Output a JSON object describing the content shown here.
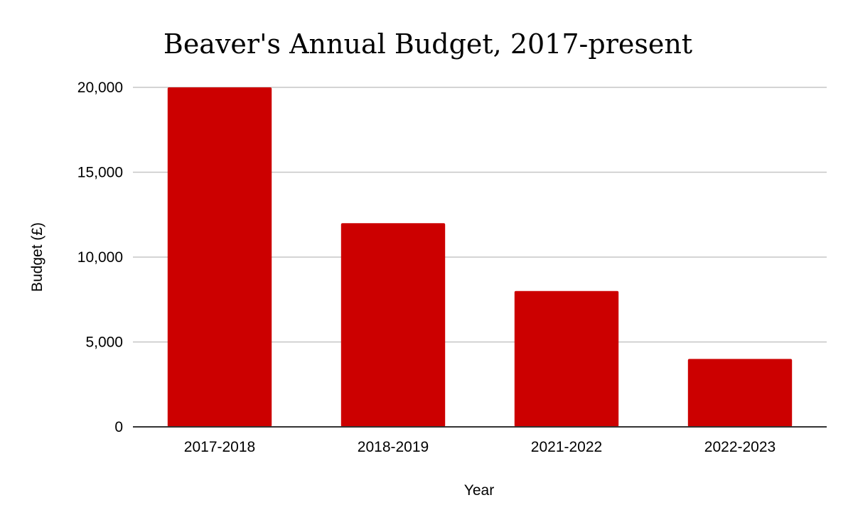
{
  "colors": {
    "bar": "#cc0000",
    "grid": "#c6c6c6",
    "axis": "#333333",
    "background": "#ffffff"
  },
  "chart_data": {
    "type": "bar",
    "title": "Beaver's Annual Budget, 2017-present",
    "xlabel": "Year",
    "ylabel": "Budget (£)",
    "categories": [
      "2017-2018",
      "2018-2019",
      "2021-2022",
      "2022-2023"
    ],
    "values": [
      20000,
      12000,
      8000,
      4000
    ],
    "ylim": [
      0,
      20000
    ],
    "yticks": [
      0,
      5000,
      10000,
      15000,
      20000
    ],
    "ytick_labels": [
      "0",
      "5,000",
      "10,000",
      "15,000",
      "20,000"
    ],
    "grid": true,
    "legend": "none"
  }
}
